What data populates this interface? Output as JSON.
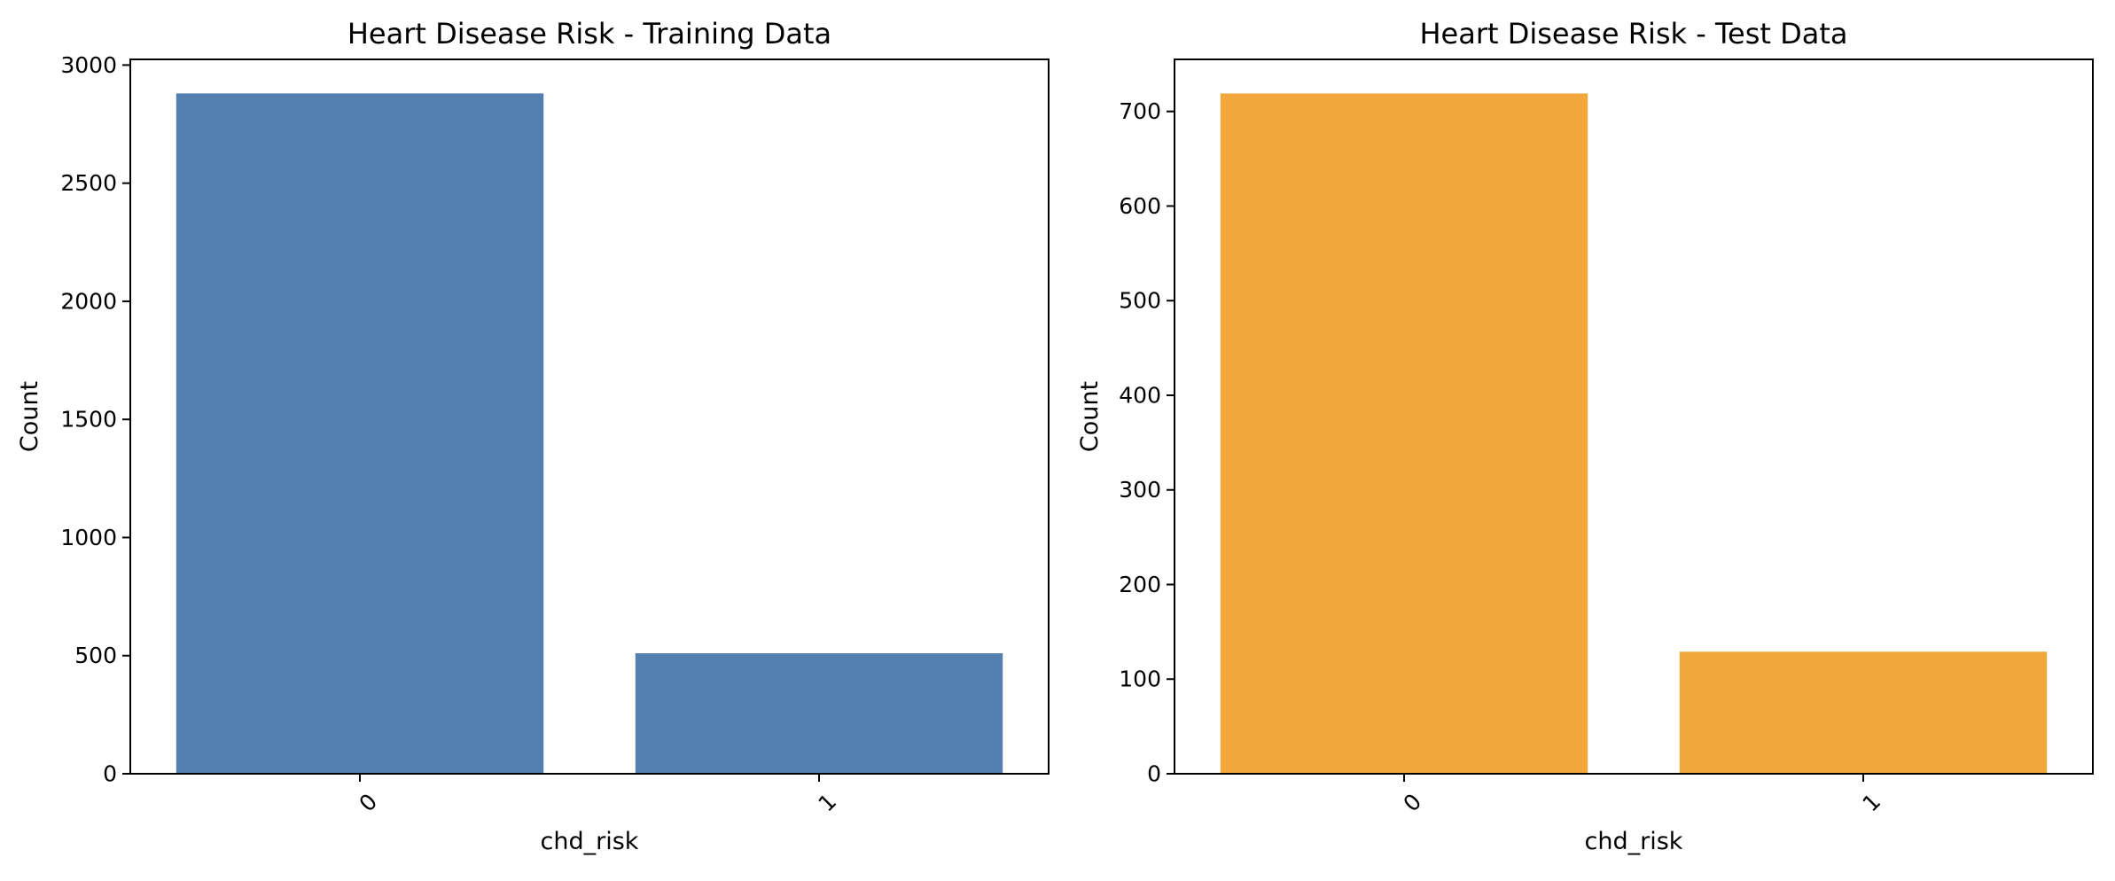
{
  "chart_data": [
    {
      "type": "bar",
      "title": "Heart Disease Risk - Training Data",
      "xlabel": "chd_risk",
      "ylabel": "Count",
      "categories": [
        "0",
        "1"
      ],
      "values": [
        2880,
        510
      ],
      "ylim": [
        0,
        3024
      ],
      "yticks": [
        0,
        500,
        1000,
        1500,
        2000,
        2500,
        3000
      ],
      "ytick_labels": [
        "0",
        "500",
        "1000",
        "1500",
        "2000",
        "2500",
        "3000"
      ],
      "xtick_rotation": -45,
      "bar_color": "#5380b0",
      "grid": false,
      "legend": "none"
    },
    {
      "type": "bar",
      "title": "Heart Disease Risk - Test Data",
      "xlabel": "chd_risk",
      "ylabel": "Count",
      "categories": [
        "0",
        "1"
      ],
      "values": [
        719,
        129
      ],
      "ylim": [
        0,
        755
      ],
      "yticks": [
        0,
        100,
        200,
        300,
        400,
        500,
        600,
        700
      ],
      "ytick_labels": [
        "0",
        "100",
        "200",
        "300",
        "400",
        "500",
        "600",
        "700"
      ],
      "xtick_rotation": -45,
      "bar_color": "#f2a73a",
      "grid": false,
      "legend": "none"
    }
  ]
}
